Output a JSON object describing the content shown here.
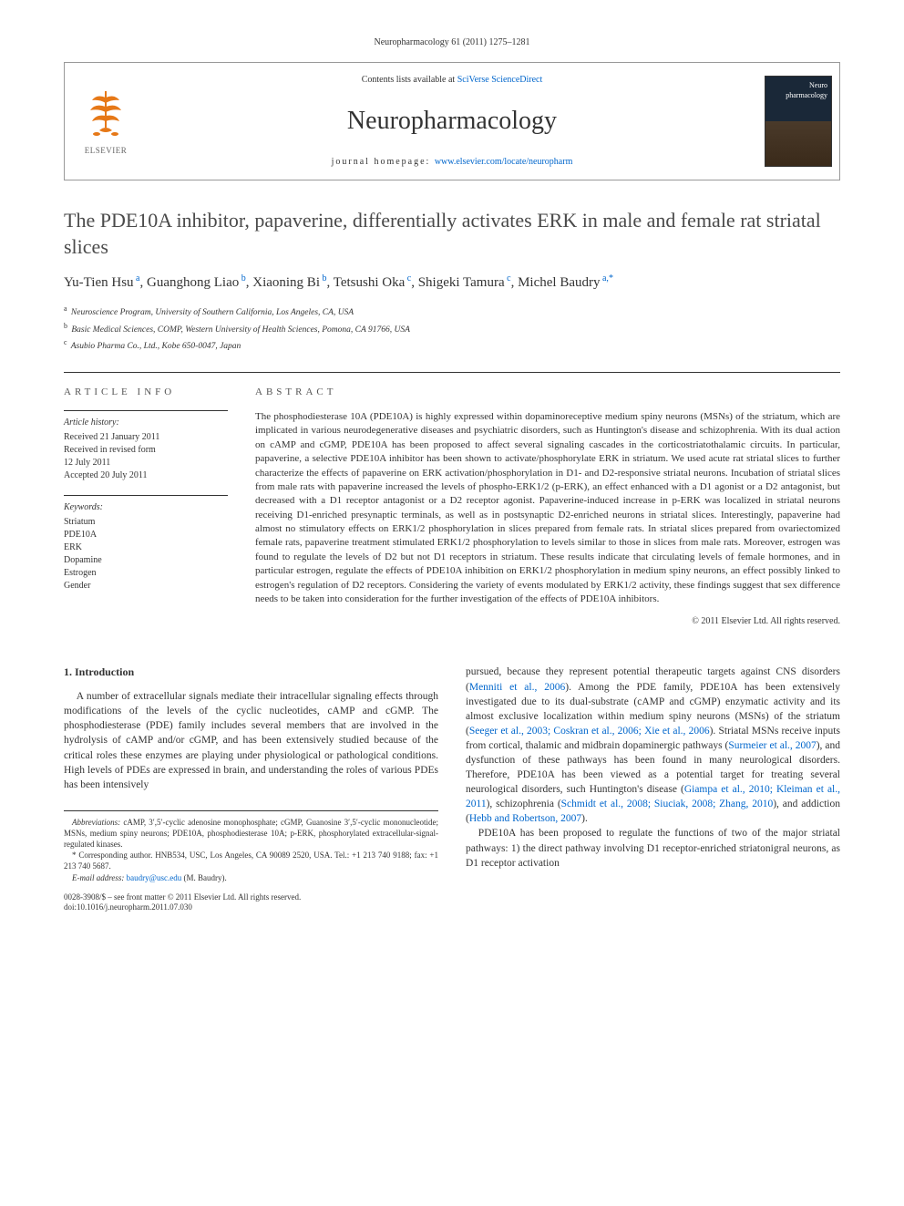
{
  "citation": "Neuropharmacology 61 (2011) 1275–1281",
  "header": {
    "contents_prefix": "Contents lists available at ",
    "contents_link": "SciVerse ScienceDirect",
    "journal": "Neuropharmacology",
    "homepage_prefix": "journal homepage: ",
    "homepage_url": "www.elsevier.com/locate/neuropharm",
    "publisher_label": "ELSEVIER",
    "cover_label": "Neuro pharmacology"
  },
  "title": "The PDE10A inhibitor, papaverine, differentially activates ERK in male and female rat striatal slices",
  "authors_html": "Yu-Tien Hsu|a|, Guanghong Liao|b|, Xiaoning Bi|b|, Tetsushi Oka|c|, Shigeki Tamura|c|, Michel Baudry|a,*",
  "authors": [
    {
      "name": "Yu-Tien Hsu",
      "aff": "a"
    },
    {
      "name": "Guanghong Liao",
      "aff": "b"
    },
    {
      "name": "Xiaoning Bi",
      "aff": "b"
    },
    {
      "name": "Tetsushi Oka",
      "aff": "c"
    },
    {
      "name": "Shigeki Tamura",
      "aff": "c"
    },
    {
      "name": "Michel Baudry",
      "aff": "a",
      "corr": true
    }
  ],
  "affiliations": [
    {
      "key": "a",
      "text": "Neuroscience Program, University of Southern California, Los Angeles, CA, USA"
    },
    {
      "key": "b",
      "text": "Basic Medical Sciences, COMP, Western University of Health Sciences, Pomona, CA 91766, USA"
    },
    {
      "key": "c",
      "text": "Asubio Pharma Co., Ltd., Kobe 650-0047, Japan"
    }
  ],
  "meta": {
    "info_head": "ARTICLE INFO",
    "abs_head": "ABSTRACT",
    "history_label": "Article history:",
    "history": [
      "Received 21 January 2011",
      "Received in revised form",
      "12 July 2011",
      "Accepted 20 July 2011"
    ],
    "keywords_label": "Keywords:",
    "keywords": [
      "Striatum",
      "PDE10A",
      "ERK",
      "Dopamine",
      "Estrogen",
      "Gender"
    ]
  },
  "abstract": "The phosphodiesterase 10A (PDE10A) is highly expressed within dopaminoreceptive medium spiny neurons (MSNs) of the striatum, which are implicated in various neurodegenerative diseases and psychiatric disorders, such as Huntington's disease and schizophrenia. With its dual action on cAMP and cGMP, PDE10A has been proposed to affect several signaling cascades in the corticostriatothalamic circuits. In particular, papaverine, a selective PDE10A inhibitor has been shown to activate/phosphorylate ERK in striatum. We used acute rat striatal slices to further characterize the effects of papaverine on ERK activation/phosphorylation in D1- and D2-responsive striatal neurons. Incubation of striatal slices from male rats with papaverine increased the levels of phospho-ERK1/2 (p-ERK), an effect enhanced with a D1 agonist or a D2 antagonist, but decreased with a D1 receptor antagonist or a D2 receptor agonist. Papaverine-induced increase in p-ERK was localized in striatal neurons receiving D1-enriched presynaptic terminals, as well as in postsynaptic D2-enriched neurons in striatal slices. Interestingly, papaverine had almost no stimulatory effects on ERK1/2 phosphorylation in slices prepared from female rats. In striatal slices prepared from ovariectomized female rats, papaverine treatment stimulated ERK1/2 phosphorylation to levels similar to those in slices from male rats. Moreover, estrogen was found to regulate the levels of D2 but not D1 receptors in striatum. These results indicate that circulating levels of female hormones, and in particular estrogen, regulate the effects of PDE10A inhibition on ERK1/2 phosphorylation in medium spiny neurons, an effect possibly linked to estrogen's regulation of D2 receptors. Considering the variety of events modulated by ERK1/2 activity, these findings suggest that sex difference needs to be taken into consideration for the further investigation of the effects of PDE10A inhibitors.",
  "copyright": "© 2011 Elsevier Ltd. All rights reserved.",
  "intro_head": "1. Introduction",
  "intro": {
    "p1": "A number of extracellular signals mediate their intracellular signaling effects through modifications of the levels of the cyclic nucleotides, cAMP and cGMP. The phosphodiesterase (PDE) family includes several members that are involved in the hydrolysis of cAMP and/or cGMP, and has been extensively studied because of the critical roles these enzymes are playing under physiological or pathological conditions. High levels of PDEs are expressed in brain, and understanding the roles of various PDEs has been intensively",
    "p2a": "pursued, because they represent potential therapeutic targets against CNS disorders (",
    "c1": "Menniti et al., 2006",
    "p2b": "). Among the PDE family, PDE10A has been extensively investigated due to its dual-substrate (cAMP and cGMP) enzymatic activity and its almost exclusive localization within medium spiny neurons (MSNs) of the striatum (",
    "c2": "Seeger et al., 2003; Coskran et al., 2006; Xie et al., 2006",
    "p2c": "). Striatal MSNs receive inputs from cortical, thalamic and midbrain dopaminergic pathways (",
    "c3": "Surmeier et al., 2007",
    "p2d": "), and dysfunction of these pathways has been found in many neurological disorders. Therefore, PDE10A has been viewed as a potential target for treating several neurological disorders, such Huntington's disease (",
    "c4": "Giampa et al., 2010; Kleiman et al., 2011",
    "p2e": "), schizophrenia (",
    "c5": "Schmidt et al., 2008; Siuciak, 2008; Zhang, 2010",
    "p2f": "), and addiction (",
    "c6": "Hebb and Robertson, 2007",
    "p2g": ").",
    "p3": "PDE10A has been proposed to regulate the functions of two of the major striatal pathways: 1) the direct pathway involving D1 receptor-enriched striatonigral neurons, as D1 receptor activation"
  },
  "footnotes": {
    "abbr_label": "Abbreviations:",
    "abbr": " cAMP, 3′,5′-cyclic adenosine monophosphate; cGMP, Guanosine 3′,5′-cyclic mononucleotide; MSNs, medium spiny neurons; PDE10A, phosphodiesterase 10A; p-ERK, phosphorylated extracellular-signal-regulated kinases.",
    "corr": "* Corresponding author. HNB534, USC, Los Angeles, CA 90089 2520, USA. Tel.: +1 213 740 9188; fax: +1 213 740 5687.",
    "email_label": "E-mail address: ",
    "email": "baudry@usc.edu",
    "email_suffix": " (M. Baudry)."
  },
  "doi": {
    "line1": "0028-3908/$ – see front matter © 2011 Elsevier Ltd. All rights reserved.",
    "line2": "doi:10.1016/j.neuropharm.2011.07.030"
  },
  "colors": {
    "link": "#0066cc",
    "text": "#333333",
    "border": "#333333"
  }
}
